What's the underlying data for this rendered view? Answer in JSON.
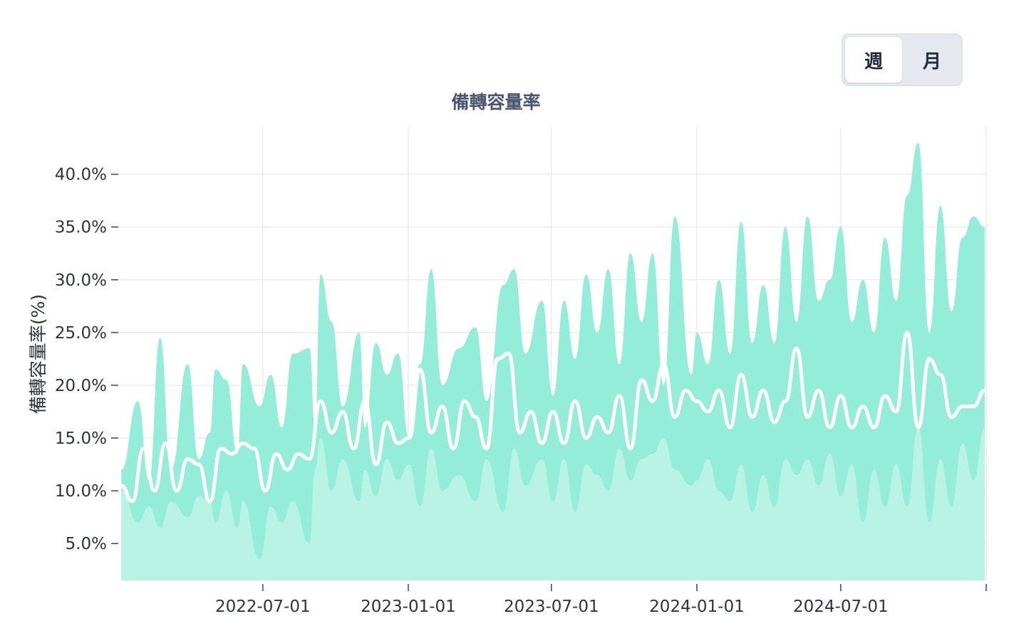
{
  "period_toggle": {
    "options": [
      "週",
      "月"
    ],
    "selected": "週"
  },
  "chart_data": {
    "type": "area",
    "title": "備轉容量率",
    "ylabel": "備轉容量率(%)",
    "xlabel": "",
    "y_tick_labels": [
      "5.0%",
      "10.0%",
      "15.0%",
      "20.0%",
      "25.0%",
      "30.0%",
      "35.0%",
      "40.0%"
    ],
    "x_tick_labels": [
      "2022-07-01",
      "2023-01-01",
      "2023-07-01",
      "2024-01-01",
      "2024-07-01"
    ],
    "x_range": [
      "2022-01-01",
      "2025-01-01"
    ],
    "ylim": [
      1.5,
      44.5
    ],
    "grid": true,
    "legend": "none",
    "series": [
      {
        "role": "max",
        "fill_color": "#93edd9",
        "values": [
          [
            "2022-01-03",
            12.0
          ],
          [
            "2022-01-24",
            18.5
          ],
          [
            "2022-02-07",
            11.0
          ],
          [
            "2022-02-21",
            24.5
          ],
          [
            "2022-03-07",
            12.0
          ],
          [
            "2022-03-28",
            22.0
          ],
          [
            "2022-04-11",
            13.0
          ],
          [
            "2022-04-25",
            15.5
          ],
          [
            "2022-05-02",
            21.5
          ],
          [
            "2022-05-16",
            20.5
          ],
          [
            "2022-05-30",
            13.5
          ],
          [
            "2022-06-06",
            22.0
          ],
          [
            "2022-06-27",
            18.0
          ],
          [
            "2022-07-11",
            21.0
          ],
          [
            "2022-07-25",
            16.0
          ],
          [
            "2022-08-08",
            23.0
          ],
          [
            "2022-08-29",
            23.5
          ],
          [
            "2022-09-05",
            16.0
          ],
          [
            "2022-09-12",
            30.5
          ],
          [
            "2022-09-26",
            26.0
          ],
          [
            "2022-10-10",
            18.0
          ],
          [
            "2022-10-31",
            25.0
          ],
          [
            "2022-11-07",
            16.0
          ],
          [
            "2022-11-21",
            24.0
          ],
          [
            "2022-12-05",
            21.0
          ],
          [
            "2022-12-19",
            23.0
          ],
          [
            "2023-01-02",
            15.0
          ],
          [
            "2023-01-16",
            22.0
          ],
          [
            "2023-01-30",
            31.0
          ],
          [
            "2023-02-13",
            20.0
          ],
          [
            "2023-03-06",
            23.5
          ],
          [
            "2023-03-27",
            25.5
          ],
          [
            "2023-04-10",
            18.5
          ],
          [
            "2023-05-01",
            29.5
          ],
          [
            "2023-05-15",
            31.0
          ],
          [
            "2023-05-29",
            23.0
          ],
          [
            "2023-06-19",
            28.0
          ],
          [
            "2023-07-03",
            19.0
          ],
          [
            "2023-07-17",
            28.0
          ],
          [
            "2023-07-31",
            22.5
          ],
          [
            "2023-08-14",
            30.5
          ],
          [
            "2023-08-28",
            25.0
          ],
          [
            "2023-09-11",
            31.0
          ],
          [
            "2023-09-25",
            22.0
          ],
          [
            "2023-10-09",
            32.5
          ],
          [
            "2023-10-23",
            26.0
          ],
          [
            "2023-11-06",
            32.5
          ],
          [
            "2023-11-20",
            20.0
          ],
          [
            "2023-12-04",
            36.0
          ],
          [
            "2023-12-25",
            21.0
          ],
          [
            "2024-01-01",
            25.0
          ],
          [
            "2024-01-15",
            22.0
          ],
          [
            "2024-01-29",
            30.0
          ],
          [
            "2024-02-12",
            23.0
          ],
          [
            "2024-02-26",
            35.5
          ],
          [
            "2024-03-11",
            24.0
          ],
          [
            "2024-03-25",
            29.5
          ],
          [
            "2024-04-08",
            24.0
          ],
          [
            "2024-04-22",
            35.0
          ],
          [
            "2024-05-06",
            26.0
          ],
          [
            "2024-05-20",
            36.0
          ],
          [
            "2024-06-03",
            28.0
          ],
          [
            "2024-06-17",
            30.0
          ],
          [
            "2024-07-01",
            35.0
          ],
          [
            "2024-07-15",
            26.0
          ],
          [
            "2024-07-29",
            30.0
          ],
          [
            "2024-08-12",
            25.0
          ],
          [
            "2024-08-26",
            34.0
          ],
          [
            "2024-09-09",
            28.0
          ],
          [
            "2024-09-23",
            38.0
          ],
          [
            "2024-10-07",
            43.0
          ],
          [
            "2024-10-21",
            25.0
          ],
          [
            "2024-11-04",
            37.0
          ],
          [
            "2024-11-18",
            27.0
          ],
          [
            "2024-12-02",
            34.0
          ],
          [
            "2024-12-16",
            36.0
          ],
          [
            "2024-12-30",
            35.0
          ]
        ]
      },
      {
        "role": "min",
        "fill_color": "#b8f3e6",
        "values": [
          [
            "2022-01-03",
            10.0
          ],
          [
            "2022-01-24",
            7.0
          ],
          [
            "2022-02-07",
            8.5
          ],
          [
            "2022-02-21",
            6.5
          ],
          [
            "2022-03-07",
            9.0
          ],
          [
            "2022-03-28",
            7.5
          ],
          [
            "2022-04-11",
            9.5
          ],
          [
            "2022-04-25",
            9.0
          ],
          [
            "2022-05-02",
            7.0
          ],
          [
            "2022-05-16",
            10.0
          ],
          [
            "2022-05-30",
            6.5
          ],
          [
            "2022-06-06",
            9.0
          ],
          [
            "2022-06-27",
            3.5
          ],
          [
            "2022-07-11",
            8.5
          ],
          [
            "2022-07-25",
            7.0
          ],
          [
            "2022-08-08",
            9.0
          ],
          [
            "2022-08-29",
            5.0
          ],
          [
            "2022-09-05",
            12.0
          ],
          [
            "2022-09-12",
            15.0
          ],
          [
            "2022-09-26",
            10.0
          ],
          [
            "2022-10-10",
            13.0
          ],
          [
            "2022-10-31",
            9.0
          ],
          [
            "2022-11-07",
            12.0
          ],
          [
            "2022-11-21",
            9.5
          ],
          [
            "2022-12-05",
            13.0
          ],
          [
            "2022-12-19",
            11.0
          ],
          [
            "2023-01-02",
            12.5
          ],
          [
            "2023-01-16",
            8.5
          ],
          [
            "2023-01-30",
            14.0
          ],
          [
            "2023-02-13",
            10.0
          ],
          [
            "2023-03-06",
            11.5
          ],
          [
            "2023-03-27",
            9.0
          ],
          [
            "2023-04-10",
            13.0
          ],
          [
            "2023-05-01",
            8.0
          ],
          [
            "2023-05-15",
            14.0
          ],
          [
            "2023-05-29",
            10.5
          ],
          [
            "2023-06-19",
            13.0
          ],
          [
            "2023-07-03",
            9.0
          ],
          [
            "2023-07-17",
            13.0
          ],
          [
            "2023-07-31",
            8.0
          ],
          [
            "2023-08-14",
            12.5
          ],
          [
            "2023-08-28",
            11.5
          ],
          [
            "2023-09-11",
            10.0
          ],
          [
            "2023-09-25",
            14.0
          ],
          [
            "2023-10-09",
            11.0
          ],
          [
            "2023-10-23",
            13.0
          ],
          [
            "2023-11-06",
            13.5
          ],
          [
            "2023-11-20",
            15.0
          ],
          [
            "2023-12-04",
            12.0
          ],
          [
            "2023-12-25",
            10.5
          ],
          [
            "2024-01-01",
            11.0
          ],
          [
            "2024-01-15",
            13.0
          ],
          [
            "2024-01-29",
            10.0
          ],
          [
            "2024-02-12",
            9.0
          ],
          [
            "2024-02-26",
            12.5
          ],
          [
            "2024-03-11",
            8.0
          ],
          [
            "2024-03-25",
            11.5
          ],
          [
            "2024-04-08",
            8.5
          ],
          [
            "2024-04-22",
            13.0
          ],
          [
            "2024-05-06",
            11.5
          ],
          [
            "2024-05-20",
            13.0
          ],
          [
            "2024-06-03",
            10.5
          ],
          [
            "2024-06-17",
            13.5
          ],
          [
            "2024-07-01",
            9.5
          ],
          [
            "2024-07-15",
            12.5
          ],
          [
            "2024-07-29",
            7.0
          ],
          [
            "2024-08-12",
            12.0
          ],
          [
            "2024-08-26",
            8.5
          ],
          [
            "2024-09-09",
            12.5
          ],
          [
            "2024-09-23",
            8.5
          ],
          [
            "2024-10-07",
            16.0
          ],
          [
            "2024-10-21",
            7.0
          ],
          [
            "2024-11-04",
            13.0
          ],
          [
            "2024-11-18",
            8.5
          ],
          [
            "2024-12-02",
            14.5
          ],
          [
            "2024-12-16",
            11.0
          ],
          [
            "2024-12-30",
            16.0
          ]
        ]
      },
      {
        "role": "avg",
        "line_color": "#ffffff",
        "values": [
          [
            "2022-01-03",
            10.5
          ],
          [
            "2022-01-17",
            9.0
          ],
          [
            "2022-01-31",
            14.0
          ],
          [
            "2022-02-14",
            10.0
          ],
          [
            "2022-02-28",
            14.5
          ],
          [
            "2022-03-14",
            10.0
          ],
          [
            "2022-03-28",
            13.0
          ],
          [
            "2022-04-11",
            12.5
          ],
          [
            "2022-04-25",
            9.0
          ],
          [
            "2022-05-09",
            14.0
          ],
          [
            "2022-05-23",
            13.5
          ],
          [
            "2022-06-06",
            14.5
          ],
          [
            "2022-06-20",
            14.0
          ],
          [
            "2022-07-04",
            10.0
          ],
          [
            "2022-07-18",
            13.5
          ],
          [
            "2022-08-01",
            12.0
          ],
          [
            "2022-08-15",
            13.5
          ],
          [
            "2022-08-29",
            13.0
          ],
          [
            "2022-09-12",
            18.5
          ],
          [
            "2022-09-26",
            15.5
          ],
          [
            "2022-10-10",
            17.5
          ],
          [
            "2022-10-24",
            14.0
          ],
          [
            "2022-11-07",
            18.5
          ],
          [
            "2022-11-21",
            12.5
          ],
          [
            "2022-12-05",
            16.5
          ],
          [
            "2022-12-19",
            14.5
          ],
          [
            "2023-01-02",
            15.0
          ],
          [
            "2023-01-16",
            21.5
          ],
          [
            "2023-01-30",
            15.5
          ],
          [
            "2023-02-13",
            18.0
          ],
          [
            "2023-02-27",
            14.0
          ],
          [
            "2023-03-13",
            18.5
          ],
          [
            "2023-03-27",
            17.0
          ],
          [
            "2023-04-10",
            14.0
          ],
          [
            "2023-04-24",
            22.5
          ],
          [
            "2023-05-08",
            23.0
          ],
          [
            "2023-05-22",
            15.5
          ],
          [
            "2023-06-05",
            17.5
          ],
          [
            "2023-06-19",
            14.5
          ],
          [
            "2023-07-03",
            17.5
          ],
          [
            "2023-07-17",
            14.5
          ],
          [
            "2023-07-31",
            18.5
          ],
          [
            "2023-08-14",
            15.0
          ],
          [
            "2023-08-28",
            17.0
          ],
          [
            "2023-09-11",
            15.5
          ],
          [
            "2023-09-25",
            19.0
          ],
          [
            "2023-10-09",
            14.0
          ],
          [
            "2023-10-23",
            20.5
          ],
          [
            "2023-11-06",
            18.5
          ],
          [
            "2023-11-20",
            22.0
          ],
          [
            "2023-12-04",
            17.0
          ],
          [
            "2023-12-18",
            19.5
          ],
          [
            "2024-01-01",
            18.5
          ],
          [
            "2024-01-15",
            17.5
          ],
          [
            "2024-01-29",
            19.5
          ],
          [
            "2024-02-12",
            16.0
          ],
          [
            "2024-02-26",
            21.0
          ],
          [
            "2024-03-11",
            17.0
          ],
          [
            "2024-03-25",
            19.5
          ],
          [
            "2024-04-08",
            16.5
          ],
          [
            "2024-04-22",
            18.5
          ],
          [
            "2024-05-06",
            23.5
          ],
          [
            "2024-05-20",
            17.0
          ],
          [
            "2024-06-03",
            19.5
          ],
          [
            "2024-06-17",
            16.0
          ],
          [
            "2024-07-01",
            19.0
          ],
          [
            "2024-07-15",
            16.0
          ],
          [
            "2024-07-29",
            18.0
          ],
          [
            "2024-08-12",
            16.0
          ],
          [
            "2024-08-26",
            19.0
          ],
          [
            "2024-09-09",
            17.5
          ],
          [
            "2024-09-23",
            25.0
          ],
          [
            "2024-10-07",
            16.0
          ],
          [
            "2024-10-21",
            22.5
          ],
          [
            "2024-11-04",
            21.0
          ],
          [
            "2024-11-18",
            17.0
          ],
          [
            "2024-12-02",
            18.0
          ],
          [
            "2024-12-16",
            18.0
          ],
          [
            "2024-12-30",
            19.5
          ]
        ]
      }
    ]
  }
}
